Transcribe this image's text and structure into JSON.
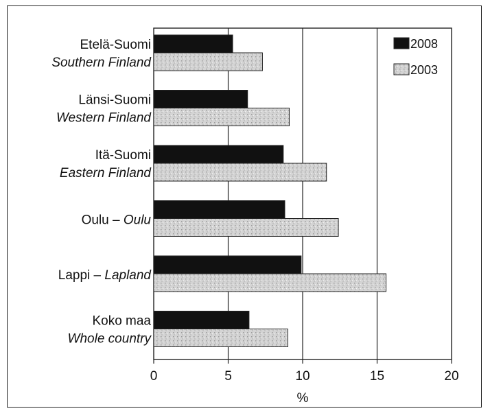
{
  "chart_data": {
    "type": "bar",
    "orientation": "horizontal",
    "categories": [
      {
        "line1": "Etelä-Suomi",
        "line2": "Southern Finland"
      },
      {
        "line1": "Länsi-Suomi",
        "line2": "Western Finland"
      },
      {
        "line1": "Itä-Suomi",
        "line2": "Eastern Finland"
      },
      {
        "line1": "Oulu – ",
        "line1_italic": "Oulu",
        "line2": ""
      },
      {
        "line1": "Lappi – ",
        "line1_italic": "Lapland",
        "line2": ""
      },
      {
        "line1": "Koko maa",
        "line2": "Whole country"
      }
    ],
    "series": [
      {
        "name": "2008",
        "color": "#111111",
        "values": [
          5.3,
          6.3,
          8.7,
          8.8,
          9.9,
          6.4
        ]
      },
      {
        "name": "2003",
        "color": "#d4d4d4",
        "values": [
          7.3,
          9.1,
          11.6,
          12.4,
          15.6,
          9.0
        ]
      }
    ],
    "xlabel": "%",
    "xlim": [
      0,
      20
    ],
    "xticks": [
      "0",
      "5",
      "10",
      "15",
      "20"
    ],
    "grid": "vertical",
    "legend_position": "top-right"
  }
}
